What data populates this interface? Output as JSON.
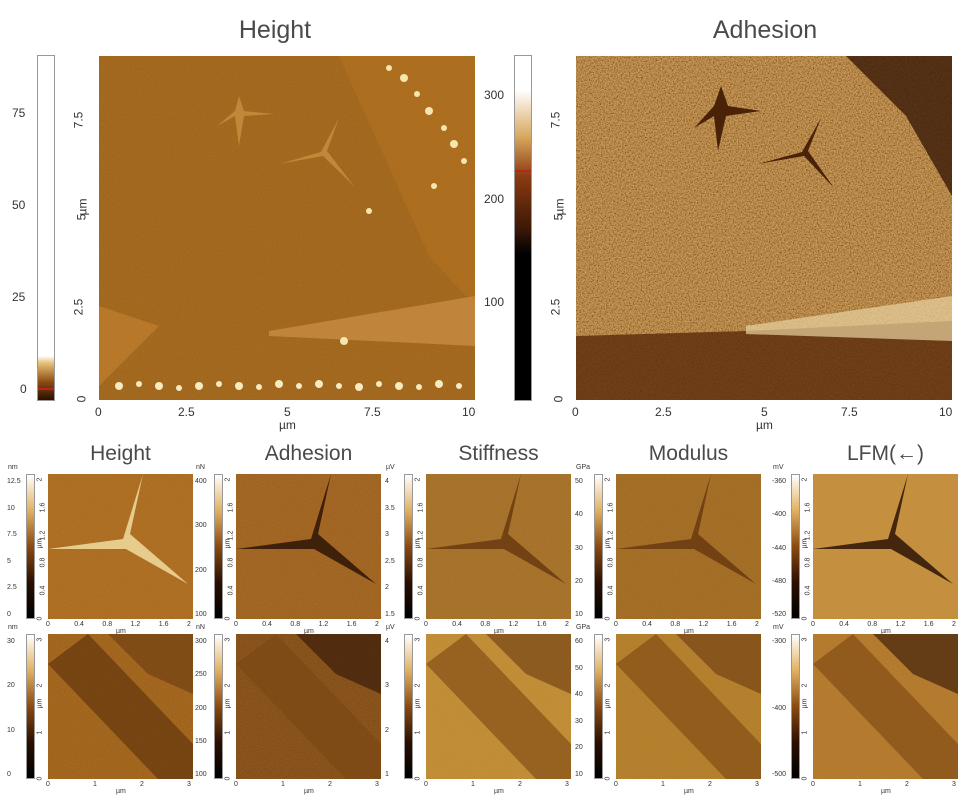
{
  "top_left": {
    "title": "Height",
    "colorbar_ticks": [
      "75",
      "50",
      "25",
      "0"
    ],
    "y_ticks": [
      "7.5",
      "5",
      "2.5",
      "0"
    ],
    "y_unit": "µm",
    "x_ticks": [
      "0",
      "2.5",
      "5",
      "7.5",
      "10"
    ],
    "x_unit": "µm"
  },
  "top_right": {
    "title": "Adhesion",
    "colorbar_ticks": [
      "300",
      "200",
      "100"
    ],
    "y_ticks": [
      "7.5",
      "5",
      "2.5",
      "0"
    ],
    "y_unit": "µm",
    "x_ticks": [
      "0",
      "2.5",
      "5",
      "7.5",
      "10"
    ],
    "x_unit": "µm"
  },
  "small_panels": [
    {
      "title": "Height",
      "row1": {
        "cbar_unit": "nm",
        "cbar_ticks": [
          "12.5",
          "10",
          "7.5",
          "5",
          "2.5",
          "0"
        ],
        "y_ticks": [
          "2",
          "1.6",
          "1.2",
          "0.8",
          "0.4",
          "0"
        ],
        "x_ticks": [
          "0",
          "0.4",
          "0.8",
          "1.2",
          "1.6",
          "2"
        ]
      },
      "row2": {
        "cbar_unit": "nm",
        "cbar_ticks": [
          "30",
          "20",
          "10",
          "0"
        ],
        "y_ticks": [
          "3",
          "2",
          "1",
          "0"
        ],
        "x_ticks": [
          "0",
          "1",
          "2",
          "3"
        ]
      }
    },
    {
      "title": "Adhesion",
      "row1": {
        "cbar_unit": "nN",
        "cbar_ticks": [
          "400",
          "300",
          "200",
          "100"
        ],
        "y_ticks": [
          "2",
          "1.6",
          "1.2",
          "0.8",
          "0.4",
          "0"
        ],
        "x_ticks": [
          "0",
          "0.4",
          "0.8",
          "1.2",
          "1.6",
          "2"
        ]
      },
      "row2": {
        "cbar_unit": "nN",
        "cbar_ticks": [
          "300",
          "250",
          "200",
          "150",
          "100"
        ],
        "y_ticks": [
          "3",
          "2",
          "1",
          "0"
        ],
        "x_ticks": [
          "0",
          "1",
          "2",
          "3"
        ]
      }
    },
    {
      "title": "Stiffness",
      "row1": {
        "cbar_unit": "µV",
        "cbar_ticks": [
          "4",
          "3.5",
          "3",
          "2.5",
          "2",
          "1.5"
        ],
        "y_ticks": [
          "2",
          "1.6",
          "1.2",
          "0.8",
          "0.4",
          "0"
        ],
        "x_ticks": [
          "0",
          "0.4",
          "0.8",
          "1.2",
          "1.6",
          "2"
        ]
      },
      "row2": {
        "cbar_unit": "µV",
        "cbar_ticks": [
          "4",
          "3",
          "2",
          "1"
        ],
        "y_ticks": [
          "3",
          "2",
          "1",
          "0"
        ],
        "x_ticks": [
          "0",
          "1",
          "2",
          "3"
        ]
      }
    },
    {
      "title": "Modulus",
      "row1": {
        "cbar_unit": "GPa",
        "cbar_ticks": [
          "50",
          "40",
          "30",
          "20",
          "10"
        ],
        "y_ticks": [
          "2",
          "1.6",
          "1.2",
          "0.8",
          "0.4",
          "0"
        ],
        "x_ticks": [
          "0",
          "0.4",
          "0.8",
          "1.2",
          "1.6",
          "2"
        ]
      },
      "row2": {
        "cbar_unit": "GPa",
        "cbar_ticks": [
          "60",
          "50",
          "40",
          "30",
          "20",
          "10"
        ],
        "y_ticks": [
          "3",
          "2",
          "1",
          "0"
        ],
        "x_ticks": [
          "0",
          "1",
          "2",
          "3"
        ]
      }
    },
    {
      "title": "LFM(←)",
      "row1": {
        "cbar_unit": "mV",
        "cbar_ticks": [
          "-360",
          "-400",
          "-440",
          "-480",
          "-520"
        ],
        "y_ticks": [
          "2",
          "1.6",
          "1.2",
          "0.8",
          "0.4",
          "0"
        ],
        "x_ticks": [
          "0",
          "0.4",
          "0.8",
          "1.2",
          "1.6",
          "2"
        ]
      },
      "row2": {
        "cbar_unit": "mV",
        "cbar_ticks": [
          "-300",
          "-400",
          "-500"
        ],
        "y_ticks": [
          "3",
          "2",
          "1",
          "0"
        ],
        "x_ticks": [
          "0",
          "1",
          "2",
          "3"
        ]
      }
    }
  ],
  "small_axis_unit": "µm",
  "colors": {
    "afm_dark": "#2a0f00",
    "afm_mid": "#a0621a",
    "afm_light": "#f2dc9e",
    "title_text": "#4a4a4a"
  }
}
